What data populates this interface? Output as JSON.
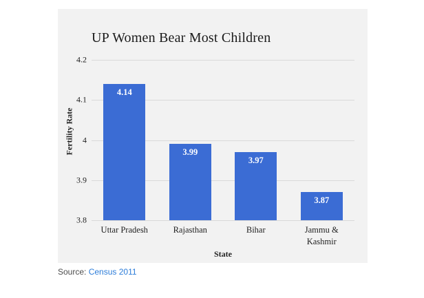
{
  "chart_data": {
    "type": "bar",
    "title": "UP Women Bear Most Children",
    "xlabel": "State",
    "ylabel": "Fertility Rate",
    "categories": [
      "Uttar Pradesh",
      "Rajasthan",
      "Bihar",
      "Jammu & Kashmir"
    ],
    "values": [
      4.14,
      3.99,
      3.97,
      3.87
    ],
    "value_labels": [
      "4.14",
      "3.99",
      "3.97",
      "3.87"
    ],
    "ylim": [
      3.8,
      4.2
    ],
    "yticks": [
      3.8,
      3.9,
      4.0,
      4.1,
      4.2
    ],
    "ytick_labels": [
      "3.8",
      "3.9",
      "4",
      "4.1",
      "4.2"
    ],
    "grid": "on",
    "legend_position": "none",
    "colors": {
      "bar": "#3b6cd4",
      "panel_background": "#f2f2f2",
      "gridline": "#d9d9d9",
      "value_label": "#ffffff"
    }
  },
  "source": {
    "prefix": "Source: ",
    "link_text": "Census 2011",
    "link_color": "#2b7cd9"
  }
}
